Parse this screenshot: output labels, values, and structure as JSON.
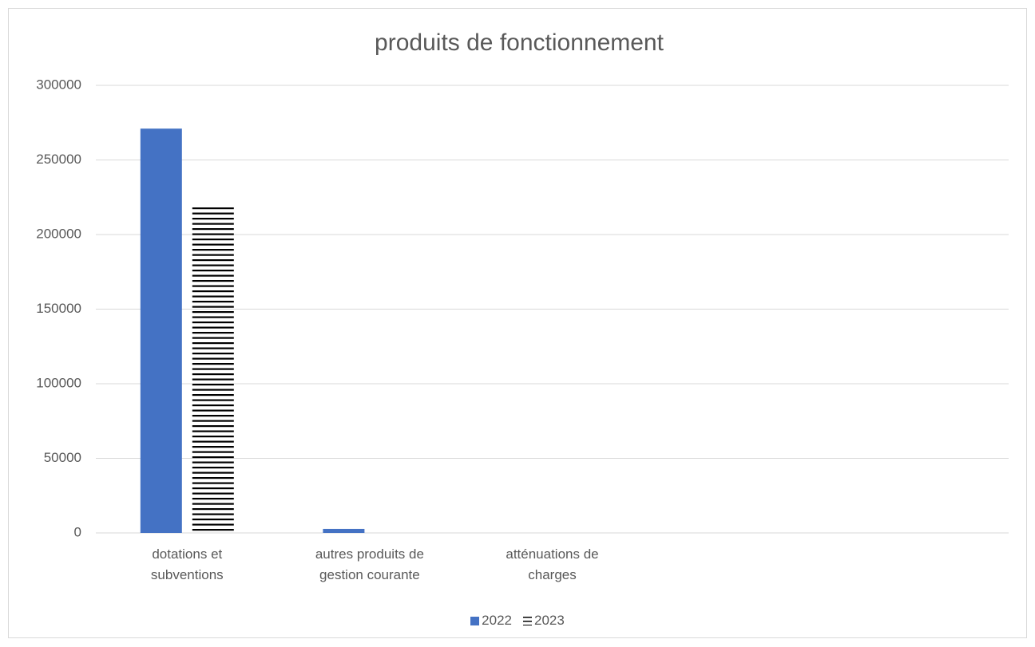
{
  "chart_data": {
    "type": "bar",
    "title": "produits de fonctionnement",
    "categories": [
      "dotations et subventions",
      "autres produits de gestion courante",
      "atténuations de charges",
      null,
      null
    ],
    "series": [
      {
        "name": "2022",
        "color": "#4472c4",
        "values": [
          271000,
          2700,
          0,
          null,
          null
        ]
      },
      {
        "name": "2023",
        "color": "#000000",
        "pattern": "horizontal-lines",
        "values": [
          219000,
          0,
          0,
          null,
          null
        ]
      }
    ],
    "ylim": [
      0,
      300000
    ],
    "yticks": [
      0,
      50000,
      100000,
      150000,
      200000,
      250000,
      300000
    ],
    "grid": true,
    "legend": "bottom"
  }
}
